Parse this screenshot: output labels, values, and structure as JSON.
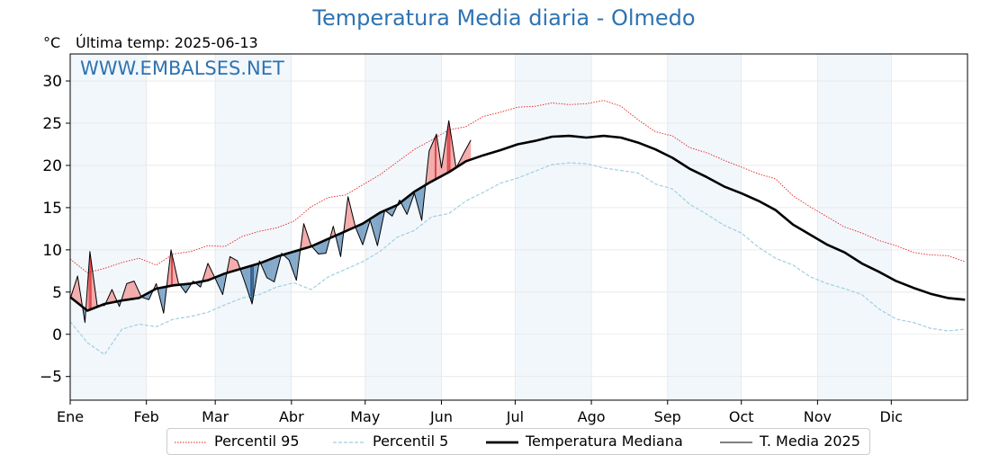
{
  "title": "Temperatura Media diaria - Olmedo",
  "unit_label": "°C",
  "last_temp_label": "Última temp: 2025-06-13",
  "watermark": "WWW.EMBALSES.NET",
  "colors": {
    "title": "#2e73b1",
    "p95": "#e8201c",
    "p5": "#9fcfe0",
    "median": "#000000",
    "media2025": "#000000",
    "above_fill": "#f3aaaa",
    "above_fill_strong": "#e0474c",
    "below_fill": "#7fa6c8",
    "below_fill_strong": "#2d5f8f",
    "month_band": "#f2f7fc"
  },
  "legend": {
    "p95": "Percentil 95",
    "p5": "Percentil 5",
    "median": "Temperatura Mediana",
    "media2025": "T. Media 2025"
  },
  "chart_data": {
    "type": "line",
    "xlabel": "",
    "ylabel": "°C",
    "ylim": [
      -7.8,
      33.2
    ],
    "xlim": [
      1,
      366
    ],
    "yticks": [
      -5,
      0,
      5,
      10,
      15,
      20,
      25,
      30
    ],
    "grid": true,
    "legend_position": "bottom",
    "x_ticks": [
      {
        "label": "Ene",
        "day": 1
      },
      {
        "label": "Feb",
        "day": 32
      },
      {
        "label": "Mar",
        "day": 60
      },
      {
        "label": "Abr",
        "day": 91
      },
      {
        "label": "May",
        "day": 121
      },
      {
        "label": "Jun",
        "day": 152
      },
      {
        "label": "Jul",
        "day": 182
      },
      {
        "label": "Ago",
        "day": 213
      },
      {
        "label": "Sep",
        "day": 244
      },
      {
        "label": "Oct",
        "day": 274
      },
      {
        "label": "Nov",
        "day": 305
      },
      {
        "label": "Dic",
        "day": 335
      }
    ],
    "shaded_month_bands": [
      [
        1,
        32
      ],
      [
        60,
        91
      ],
      [
        121,
        152
      ],
      [
        182,
        213
      ],
      [
        244,
        274
      ],
      [
        305,
        335
      ]
    ],
    "series": [
      {
        "name": "Percentil 95",
        "style": "dotted",
        "x": [
          1,
          8,
          15,
          22,
          29,
          36,
          43,
          50,
          57,
          64,
          71,
          78,
          85,
          92,
          99,
          106,
          113,
          120,
          127,
          134,
          141,
          148,
          155,
          162,
          169,
          176,
          183,
          190,
          197,
          204,
          211,
          218,
          225,
          232,
          239,
          246,
          253,
          260,
          267,
          274,
          281,
          288,
          295,
          302,
          309,
          316,
          323,
          330,
          337,
          344,
          351,
          358,
          365
        ],
        "y": [
          8.9,
          7.3,
          7.8,
          8.5,
          9.0,
          8.2,
          9.5,
          9.8,
          10.5,
          10.4,
          11.6,
          12.2,
          12.6,
          13.4,
          15.1,
          16.2,
          16.5,
          17.7,
          18.9,
          20.4,
          21.9,
          23.0,
          24.2,
          24.6,
          25.8,
          26.3,
          26.9,
          27.0,
          27.4,
          27.2,
          27.3,
          27.7,
          27.0,
          25.4,
          24.0,
          23.5,
          22.1,
          21.5,
          20.6,
          19.8,
          19.0,
          18.4,
          16.4,
          15.1,
          13.9,
          12.7,
          12.0,
          11.1,
          10.5,
          9.7,
          9.4,
          9.3,
          8.6
        ]
      },
      {
        "name": "Percentil 5",
        "style": "dashed",
        "x": [
          1,
          8,
          15,
          22,
          29,
          36,
          43,
          50,
          57,
          64,
          71,
          78,
          85,
          92,
          99,
          106,
          113,
          120,
          127,
          134,
          141,
          148,
          155,
          162,
          169,
          176,
          183,
          190,
          197,
          204,
          211,
          218,
          225,
          232,
          239,
          246,
          253,
          260,
          267,
          274,
          281,
          288,
          295,
          302,
          309,
          316,
          323,
          330,
          337,
          344,
          351,
          358,
          365
        ],
        "y": [
          1.5,
          -1.0,
          -2.4,
          0.6,
          1.2,
          0.9,
          1.8,
          2.1,
          2.6,
          3.5,
          4.3,
          4.7,
          5.6,
          6.1,
          5.3,
          6.8,
          7.7,
          8.6,
          9.8,
          11.5,
          12.3,
          13.9,
          14.3,
          15.8,
          16.8,
          17.9,
          18.5,
          19.3,
          20.1,
          20.3,
          20.2,
          19.7,
          19.4,
          19.1,
          17.8,
          17.2,
          15.4,
          14.2,
          12.9,
          12.0,
          10.3,
          9.0,
          8.2,
          6.8,
          6.0,
          5.4,
          4.7,
          3.0,
          1.8,
          1.4,
          0.7,
          0.4,
          0.6
        ]
      },
      {
        "name": "Temperatura Mediana",
        "style": "thick",
        "x": [
          1,
          8,
          15,
          22,
          29,
          36,
          43,
          50,
          57,
          64,
          71,
          78,
          85,
          92,
          99,
          106,
          113,
          120,
          127,
          134,
          141,
          148,
          155,
          162,
          169,
          176,
          183,
          190,
          197,
          204,
          211,
          218,
          225,
          232,
          239,
          246,
          253,
          260,
          267,
          274,
          281,
          288,
          295,
          302,
          309,
          316,
          323,
          330,
          337,
          344,
          351,
          358,
          365
        ],
        "y": [
          4.4,
          2.8,
          3.6,
          4.0,
          4.3,
          5.4,
          5.8,
          6.0,
          6.4,
          7.2,
          7.8,
          8.4,
          9.2,
          9.8,
          10.4,
          11.3,
          12.2,
          13.1,
          14.4,
          15.3,
          16.9,
          18.1,
          19.2,
          20.5,
          21.2,
          21.8,
          22.5,
          22.9,
          23.4,
          23.5,
          23.3,
          23.5,
          23.3,
          22.7,
          21.9,
          20.9,
          19.6,
          18.6,
          17.5,
          16.7,
          15.8,
          14.7,
          13.0,
          11.8,
          10.6,
          9.7,
          8.4,
          7.4,
          6.3,
          5.5,
          4.8,
          4.3,
          4.1
        ]
      },
      {
        "name": "T. Media 2025",
        "style": "thin",
        "x": [
          1,
          4,
          7,
          9,
          12,
          15,
          18,
          21,
          24,
          27,
          30,
          33,
          36,
          39,
          42,
          45,
          48,
          51,
          54,
          57,
          60,
          63,
          66,
          69,
          72,
          75,
          78,
          81,
          84,
          87,
          90,
          93,
          96,
          99,
          102,
          105,
          108,
          111,
          114,
          117,
          120,
          123,
          126,
          129,
          132,
          135,
          138,
          141,
          144,
          147,
          150,
          152,
          155,
          158,
          161,
          164
        ],
        "y": [
          4.2,
          6.9,
          1.4,
          9.8,
          3.4,
          3.4,
          5.3,
          3.3,
          6.0,
          6.3,
          4.4,
          4.1,
          6.0,
          2.5,
          10.0,
          6.1,
          4.9,
          6.3,
          5.6,
          8.4,
          6.6,
          4.7,
          9.2,
          8.7,
          6.2,
          3.6,
          8.7,
          6.7,
          6.2,
          9.6,
          8.8,
          6.4,
          13.1,
          10.5,
          9.5,
          9.6,
          12.8,
          9.2,
          16.3,
          12.7,
          10.6,
          13.5,
          10.5,
          14.7,
          14.0,
          15.9,
          14.2,
          16.7,
          13.5,
          21.7,
          23.7,
          19.7,
          25.3,
          19.7,
          21.4,
          23.0
        ]
      }
    ]
  }
}
